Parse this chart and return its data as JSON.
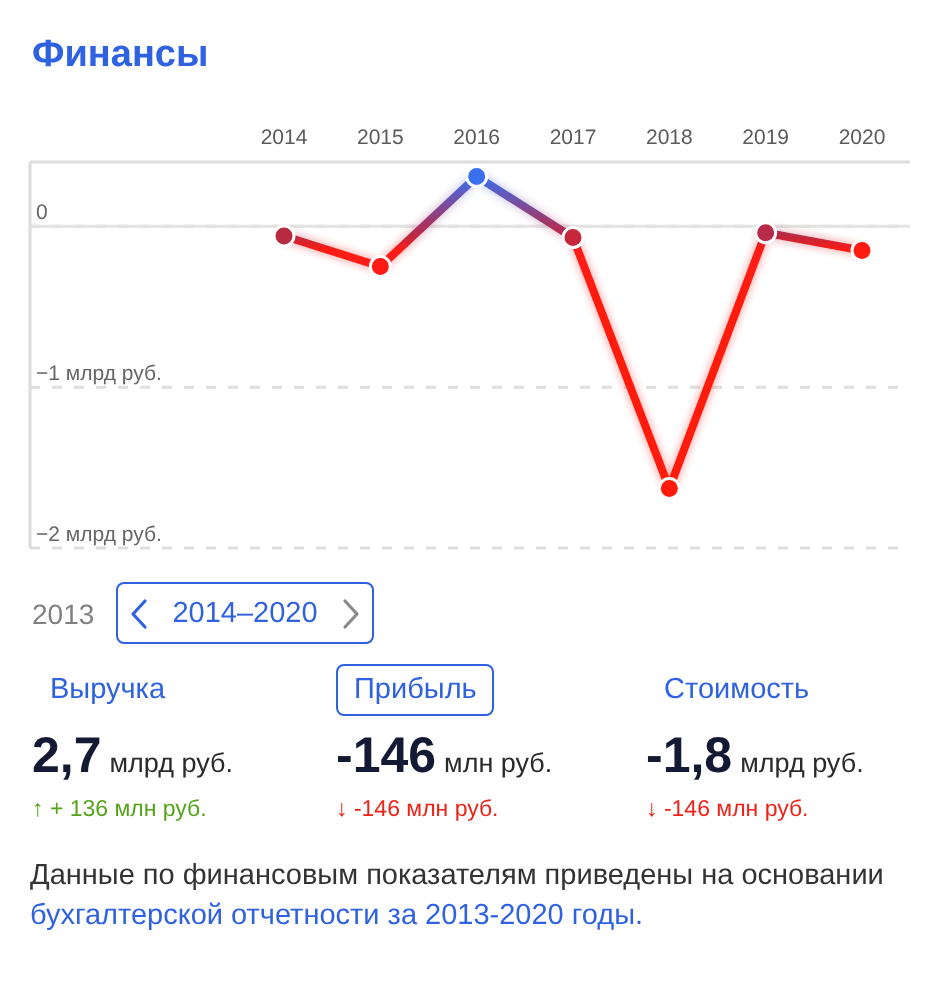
{
  "chart_data": [
    {
      "type": "line",
      "title": "Финансы",
      "categories": [
        "2014",
        "2015",
        "2016",
        "2017",
        "2018",
        "2019",
        "2020"
      ],
      "series": [
        {
          "values": [
            -0.06,
            -0.25,
            0.31,
            -0.07,
            -1.63,
            -0.04,
            -0.15
          ],
          "colors": [
            "#b82a40",
            "#ff1a12",
            "#3a6ff0",
            "#c4283a",
            "#ff1a0a",
            "#b8294a",
            "#ff1a12"
          ]
        }
      ],
      "ylim": [
        -2,
        0.4
      ],
      "yticks": [
        {
          "value": -2,
          "label": "−2 млрд руб."
        },
        {
          "value": -1,
          "label": "−1 млрд руб."
        },
        0
      ],
      "grid": "y",
      "ref_lines": [
        {
          "axis": "y",
          "value": 0,
          "color": "#e3e3e3",
          "line_style": "solid"
        }
      ],
      "marker": "circle",
      "line_style": "solid"
    },
    {
      "type": "other",
      "annotations": [
        "2013",
        "2014–2020",
        "Выручка",
        "2,7 млрд руб.",
        "↑ + 136 млн руб.",
        "Прибыль",
        "-146 млн руб.",
        "↓ -146 млн руб.",
        "Стоимость",
        "-1,8 млрд руб.",
        "↓ -146 млн руб.",
        "Данные по финансовым показателям приведены на основании",
        "бухгалтерской отчетности за 2013-2020 годы."
      ]
    }
  ]
}
